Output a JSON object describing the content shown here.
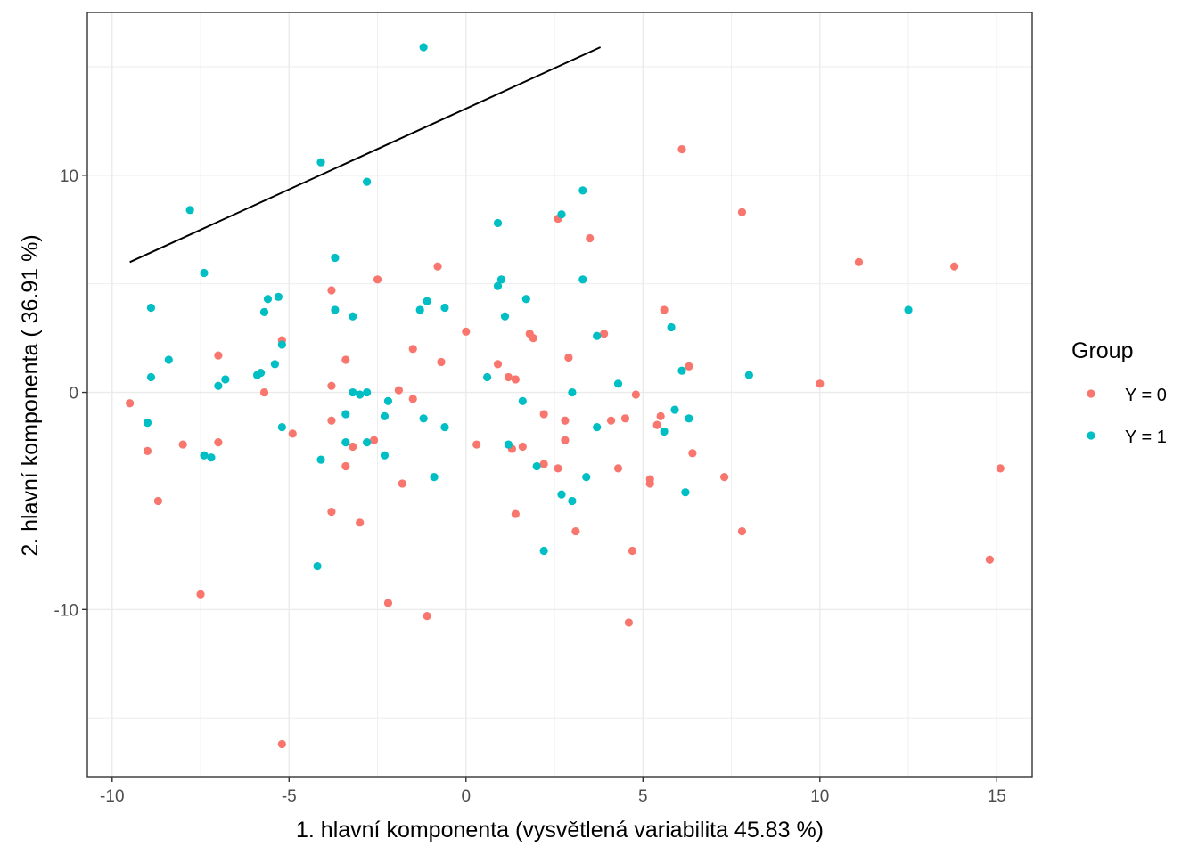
{
  "chart_data": {
    "type": "scatter",
    "xlabel": "1. hlavní komponenta (vysvětlená variabilita 45.83 %)",
    "ylabel": "2. hlavní komponenta ( 36.91 %)",
    "xlim": [
      -10.7,
      16.0
    ],
    "ylim": [
      -17.7,
      17.5
    ],
    "x_ticks": [
      -10,
      -5,
      0,
      5,
      10,
      15
    ],
    "y_ticks": [
      -10,
      0,
      10
    ],
    "x_tick_labels": [
      "-10",
      "-5",
      "0",
      "5",
      "10",
      "15"
    ],
    "y_tick_labels": [
      "-10",
      "0",
      "10"
    ],
    "grid": true,
    "legend": {
      "title": "Group",
      "position": "right",
      "entries": [
        {
          "label": "Y = 0",
          "color": "#F8766D"
        },
        {
          "label": "Y = 1",
          "color": "#00BFC4"
        }
      ]
    },
    "line": {
      "x": [
        -9.5,
        3.8
      ],
      "y": [
        6.0,
        15.9
      ],
      "color": "#000000"
    },
    "series": [
      {
        "name": "Y = 0",
        "color": "#F8766D",
        "points": [
          [
            -9.5,
            -0.5
          ],
          [
            -9.0,
            -2.7
          ],
          [
            -8.7,
            -5.0
          ],
          [
            -8.0,
            -2.4
          ],
          [
            -7.5,
            -9.3
          ],
          [
            -7.0,
            1.7
          ],
          [
            -7.0,
            -2.3
          ],
          [
            -5.7,
            0.0
          ],
          [
            -5.2,
            2.4
          ],
          [
            -5.2,
            -16.2
          ],
          [
            -4.9,
            -1.9
          ],
          [
            -3.8,
            4.7
          ],
          [
            -3.8,
            0.3
          ],
          [
            -3.8,
            -1.3
          ],
          [
            -3.8,
            -5.5
          ],
          [
            -3.4,
            1.5
          ],
          [
            -3.4,
            -3.4
          ],
          [
            -3.2,
            -2.5
          ],
          [
            -3.0,
            -6.0
          ],
          [
            -2.6,
            -2.2
          ],
          [
            -2.5,
            5.2
          ],
          [
            -2.2,
            -9.7
          ],
          [
            -1.9,
            0.1
          ],
          [
            -1.8,
            -4.2
          ],
          [
            -1.5,
            2.0
          ],
          [
            -1.5,
            -0.3
          ],
          [
            -1.1,
            -10.3
          ],
          [
            -0.8,
            5.8
          ],
          [
            -0.7,
            1.4
          ],
          [
            0.0,
            2.8
          ],
          [
            0.3,
            -2.4
          ],
          [
            0.9,
            1.3
          ],
          [
            1.2,
            0.7
          ],
          [
            1.3,
            -2.6
          ],
          [
            1.4,
            -5.6
          ],
          [
            1.4,
            0.6
          ],
          [
            1.6,
            -2.5
          ],
          [
            1.8,
            2.7
          ],
          [
            1.9,
            2.5
          ],
          [
            2.2,
            -1.0
          ],
          [
            2.2,
            -3.3
          ],
          [
            2.6,
            8.0
          ],
          [
            2.6,
            -3.5
          ],
          [
            2.8,
            -1.3
          ],
          [
            2.8,
            -2.2
          ],
          [
            2.9,
            1.6
          ],
          [
            3.1,
            -6.4
          ],
          [
            3.5,
            7.1
          ],
          [
            3.9,
            2.7
          ],
          [
            4.1,
            -1.3
          ],
          [
            4.3,
            -3.5
          ],
          [
            4.5,
            -1.2
          ],
          [
            4.6,
            -10.6
          ],
          [
            4.7,
            -7.3
          ],
          [
            4.8,
            -0.1
          ],
          [
            5.2,
            -4.0
          ],
          [
            5.2,
            -4.2
          ],
          [
            5.4,
            -1.5
          ],
          [
            5.5,
            -1.1
          ],
          [
            5.6,
            3.8
          ],
          [
            6.1,
            11.2
          ],
          [
            6.3,
            1.2
          ],
          [
            6.4,
            -2.8
          ],
          [
            7.3,
            -3.9
          ],
          [
            7.8,
            8.3
          ],
          [
            7.8,
            -6.4
          ],
          [
            10.0,
            0.4
          ],
          [
            11.1,
            6.0
          ],
          [
            13.8,
            5.8
          ],
          [
            14.8,
            -7.7
          ],
          [
            15.1,
            -3.5
          ]
        ]
      },
      {
        "name": "Y = 1",
        "color": "#00BFC4",
        "points": [
          [
            -9.0,
            -1.4
          ],
          [
            -8.9,
            3.9
          ],
          [
            -8.9,
            0.7
          ],
          [
            -8.4,
            1.5
          ],
          [
            -7.8,
            8.4
          ],
          [
            -7.4,
            5.5
          ],
          [
            -7.4,
            -2.9
          ],
          [
            -7.2,
            -3.0
          ],
          [
            -7.0,
            0.3
          ],
          [
            -6.8,
            0.6
          ],
          [
            -5.9,
            0.8
          ],
          [
            -5.8,
            0.9
          ],
          [
            -5.7,
            3.7
          ],
          [
            -5.6,
            4.3
          ],
          [
            -5.4,
            1.3
          ],
          [
            -5.3,
            4.4
          ],
          [
            -5.2,
            2.2
          ],
          [
            -5.2,
            -1.6
          ],
          [
            -4.1,
            10.6
          ],
          [
            -4.2,
            -8.0
          ],
          [
            -4.1,
            -3.1
          ],
          [
            -3.7,
            6.2
          ],
          [
            -3.7,
            3.8
          ],
          [
            -3.4,
            -2.3
          ],
          [
            -3.4,
            -1.0
          ],
          [
            -3.2,
            3.5
          ],
          [
            -3.2,
            0.0
          ],
          [
            -3.0,
            -0.1
          ],
          [
            -2.8,
            9.7
          ],
          [
            -2.8,
            0.0
          ],
          [
            -2.8,
            -2.3
          ],
          [
            -2.3,
            -2.9
          ],
          [
            -2.3,
            -1.1
          ],
          [
            -2.2,
            -0.4
          ],
          [
            -1.3,
            3.8
          ],
          [
            -1.2,
            15.9
          ],
          [
            -1.2,
            -1.2
          ],
          [
            -1.1,
            4.2
          ],
          [
            -0.9,
            -3.9
          ],
          [
            -0.6,
            3.9
          ],
          [
            -0.6,
            -1.6
          ],
          [
            0.6,
            0.7
          ],
          [
            0.9,
            7.8
          ],
          [
            0.9,
            4.9
          ],
          [
            1.0,
            5.2
          ],
          [
            1.1,
            3.5
          ],
          [
            1.2,
            -2.4
          ],
          [
            1.6,
            -0.4
          ],
          [
            1.7,
            4.3
          ],
          [
            2.0,
            -3.4
          ],
          [
            2.2,
            -7.3
          ],
          [
            2.7,
            8.2
          ],
          [
            2.7,
            -4.7
          ],
          [
            3.0,
            0.0
          ],
          [
            3.0,
            -5.0
          ],
          [
            3.3,
            9.3
          ],
          [
            3.3,
            5.2
          ],
          [
            3.4,
            -3.9
          ],
          [
            3.7,
            2.6
          ],
          [
            3.7,
            -1.6
          ],
          [
            4.3,
            0.4
          ],
          [
            5.6,
            -1.8
          ],
          [
            5.8,
            3.0
          ],
          [
            5.9,
            -0.8
          ],
          [
            6.1,
            1.0
          ],
          [
            6.2,
            -4.6
          ],
          [
            6.3,
            -1.2
          ],
          [
            8.0,
            0.8
          ],
          [
            12.5,
            3.8
          ]
        ]
      }
    ]
  }
}
